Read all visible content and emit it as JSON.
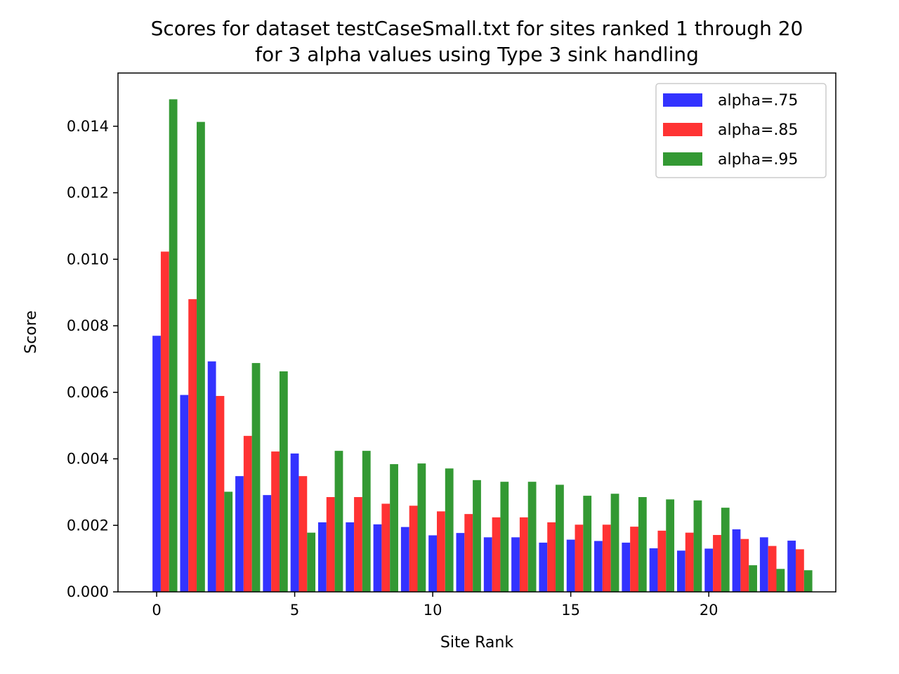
{
  "chart_data": {
    "type": "bar",
    "title": "Scores for dataset testCaseSmall.txt for sites ranked 1 through 20",
    "subtitle": "for 3 alpha values using Type 3 sink handling",
    "xlabel": "Site Rank",
    "ylabel": "Score",
    "xlim": [
      -1.4,
      24.6
    ],
    "ylim": [
      0,
      0.0156
    ],
    "x_ticks": [
      0,
      5,
      10,
      15,
      20
    ],
    "y_ticks": [
      0.0,
      0.002,
      0.004,
      0.006,
      0.008,
      0.01,
      0.012,
      0.014
    ],
    "y_tick_labels": [
      "0.000",
      "0.002",
      "0.004",
      "0.006",
      "0.008",
      "0.010",
      "0.012",
      "0.014"
    ],
    "x": [
      0,
      1,
      2,
      3,
      4,
      5,
      6,
      7,
      8,
      9,
      10,
      11,
      12,
      13,
      14,
      15,
      16,
      17,
      18,
      19,
      20,
      21,
      22,
      23
    ],
    "bar_width": 0.3,
    "grid": false,
    "legend_position": "top-right",
    "series": [
      {
        "name": "alpha=.75",
        "color": "#3333ff",
        "values": [
          0.0077,
          0.00592,
          0.00693,
          0.00348,
          0.00291,
          0.00416,
          0.00209,
          0.00209,
          0.00203,
          0.00195,
          0.0017,
          0.00177,
          0.00164,
          0.00164,
          0.00148,
          0.00157,
          0.00153,
          0.00148,
          0.00131,
          0.00124,
          0.0013,
          0.00188,
          0.00164,
          0.00154
        ]
      },
      {
        "name": "alpha=.85",
        "color": "#ff3333",
        "values": [
          0.01023,
          0.0088,
          0.00589,
          0.00469,
          0.00422,
          0.00348,
          0.00285,
          0.00285,
          0.00265,
          0.00259,
          0.00242,
          0.00234,
          0.00224,
          0.00224,
          0.00209,
          0.00202,
          0.00202,
          0.00196,
          0.00184,
          0.00178,
          0.00171,
          0.00159,
          0.00138,
          0.00128
        ]
      },
      {
        "name": "alpha=.95",
        "color": "#339933",
        "values": [
          0.01481,
          0.01413,
          0.00301,
          0.00688,
          0.00663,
          0.00178,
          0.00424,
          0.00424,
          0.00384,
          0.00386,
          0.00371,
          0.00336,
          0.00331,
          0.00331,
          0.00322,
          0.00289,
          0.00295,
          0.00285,
          0.00278,
          0.00275,
          0.00253,
          0.0008,
          0.00069,
          0.00065
        ]
      }
    ]
  }
}
